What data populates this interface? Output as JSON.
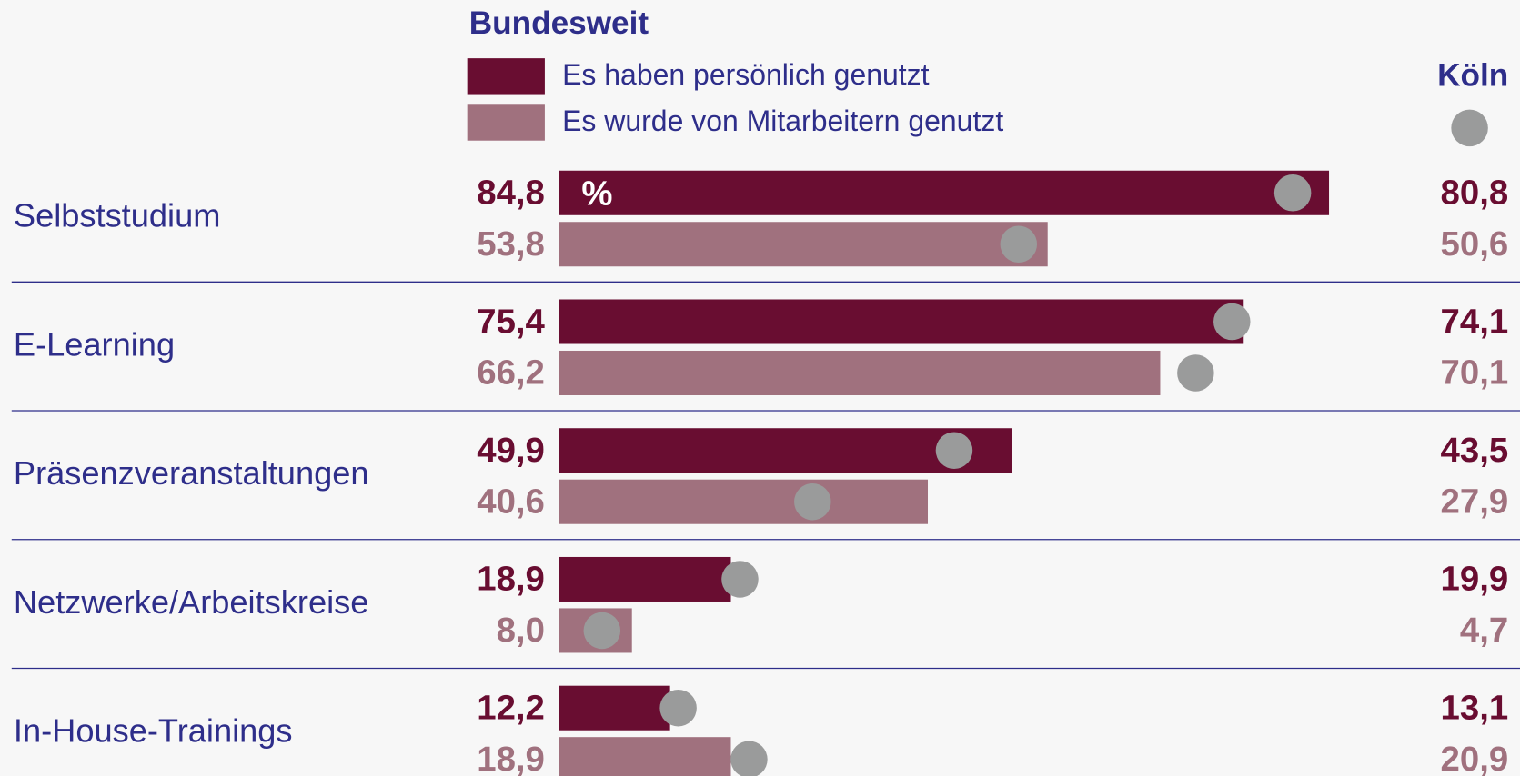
{
  "chart_data": {
    "type": "bar",
    "title": "Bundesweit",
    "unit": "%",
    "categories": [
      "Selbststudium",
      "E-Learning",
      "Präsenzveranstaltungen",
      "Netzwerke/Arbeitskreise",
      "In-House-Trainings"
    ],
    "series": [
      {
        "name": "Es haben persönlich genutzt",
        "color": "#690d31",
        "values": [
          84.8,
          75.4,
          49.9,
          18.9,
          12.2
        ],
        "value_labels": [
          "84,8",
          "75,4",
          "49,9",
          "18,9",
          "12,2"
        ]
      },
      {
        "name": "Es wurde von Mitarbeitern genutzt",
        "color": "#a0717e",
        "values": [
          53.8,
          66.2,
          40.6,
          8.0,
          18.9
        ],
        "value_labels": [
          "53,8",
          "66,2",
          "40,6",
          "8,0",
          "18,9"
        ]
      }
    ],
    "comparison": {
      "title": "Köln",
      "color": "#9a9b9b",
      "series": [
        {
          "values": [
            80.8,
            74.1,
            43.5,
            19.9,
            13.1
          ],
          "value_labels": [
            "80,8",
            "74,1",
            "43,5",
            "19,9",
            "13,1"
          ]
        },
        {
          "values": [
            50.6,
            70.1,
            27.9,
            4.7,
            20.9
          ],
          "value_labels": [
            "50,6",
            "70,1",
            "27,9",
            "4,7",
            "20,9"
          ]
        }
      ]
    }
  }
}
